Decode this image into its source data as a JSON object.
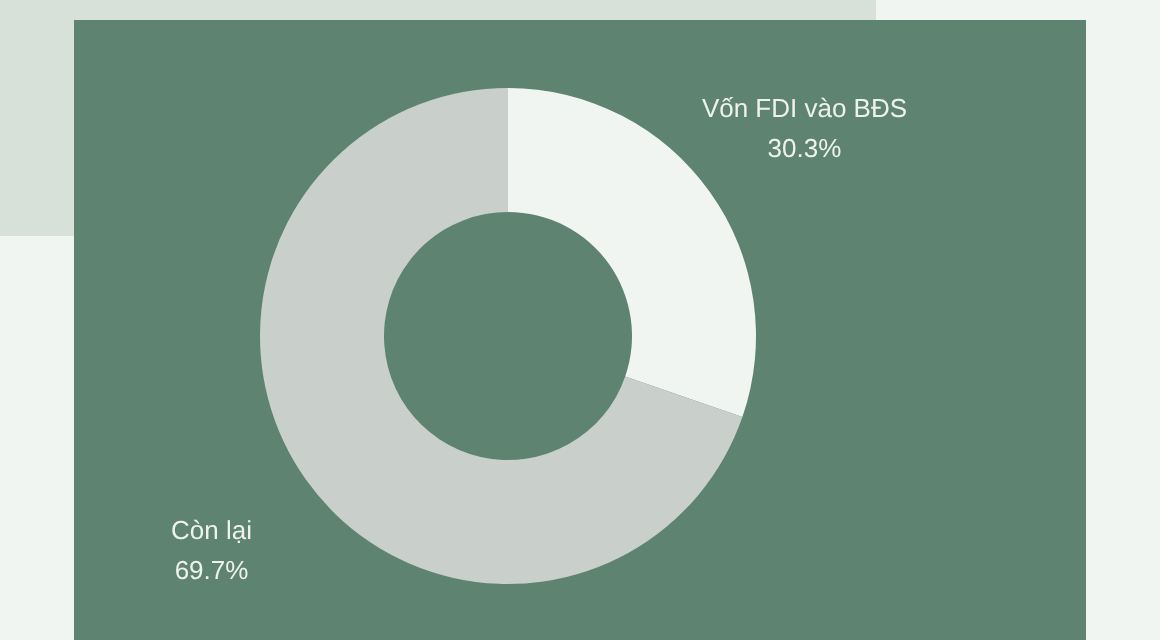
{
  "chart_data": {
    "type": "donut",
    "categories": [
      "Vốn FDI vào BĐS",
      "Còn lại"
    ],
    "values": [
      30.3,
      69.7
    ],
    "colors": [
      "#f1f5f1",
      "#c9cfcb"
    ],
    "value_labels": [
      "30.3%",
      "69.7%"
    ]
  }
}
